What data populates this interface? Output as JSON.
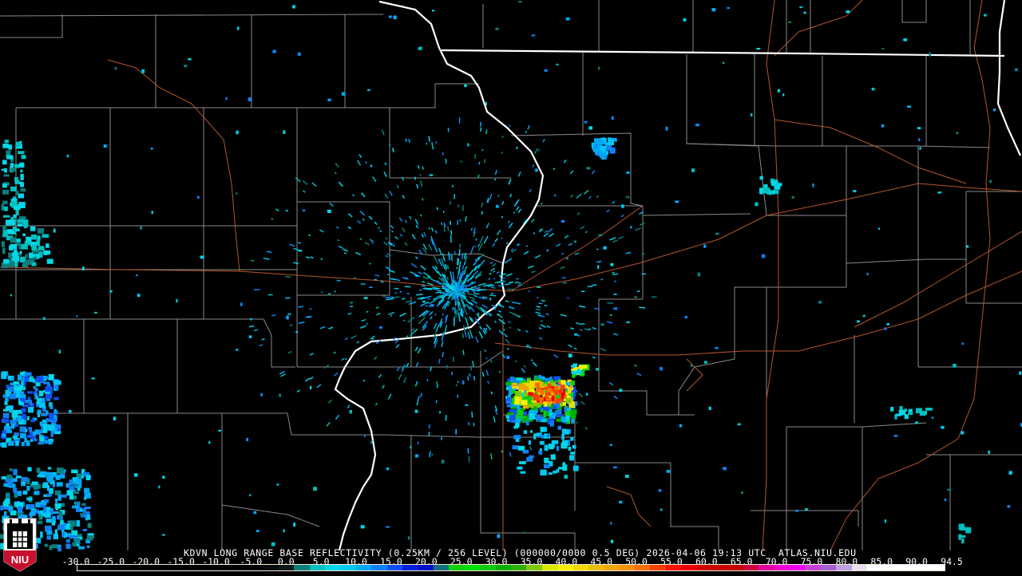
{
  "product": {
    "title": "KDVN LONG RANGE BASE REFLECTIVITY (0.25KM / 256 LEVEL) (000000/0000 0.5 DEG) 2026-04-06 19:13 UTC  ATLAS.NIU.EDU"
  },
  "logo": {
    "text": "NIU",
    "colors": {
      "red": "#c8102e",
      "white": "#ffffff"
    }
  },
  "colorbar": {
    "unit_hint": "dBZ",
    "labels": [
      "-30.0",
      "-25.0",
      "-20.0",
      "-15.0",
      "-10.0",
      "-5.0",
      "0.0",
      "5.0",
      "10.0",
      "15.0",
      "20.0",
      "25.0",
      "30.0",
      "35.0",
      "40.0",
      "45.0",
      "50.0",
      "55.0",
      "60.0",
      "65.0",
      "70.0",
      "75.0",
      "80.0",
      "85.0",
      "90.0",
      "94.5"
    ],
    "colors": [
      "#000000",
      "#000000",
      "#000000",
      "#000000",
      "#000000",
      "#000000",
      "#000000",
      "#000000",
      "#000000",
      "#000000",
      "#000000",
      "#000000",
      "#040d0d",
      "#0a1a1a",
      "#0a7f7f",
      "#00c0c0",
      "#00d8e8",
      "#00c8f0",
      "#00a8f8",
      "#1080f0",
      "#1050f0",
      "#0020e0",
      "#0010c8",
      "#107080",
      "#10d010",
      "#00e000",
      "#10c810",
      "#00b000",
      "#30b000",
      "#80c800",
      "#d8e800",
      "#f8f000",
      "#f0d800",
      "#e8c000",
      "#f0a800",
      "#f89000",
      "#f87000",
      "#f84000",
      "#f81000",
      "#e80000",
      "#d00000",
      "#c80000",
      "#c00000",
      "#c80040",
      "#e000a0",
      "#f000d0",
      "#f000f0",
      "#c840d8",
      "#a860d0",
      "#c0a0e0",
      "#e8e0f0",
      "#ffffff",
      "#ffffff",
      "#ffffff",
      "#ffffff",
      "#ffffff"
    ]
  },
  "map_colors": {
    "county": "#8a8a8a",
    "state": "#ffffff",
    "road": "#b4562a",
    "background": "#000000"
  }
}
